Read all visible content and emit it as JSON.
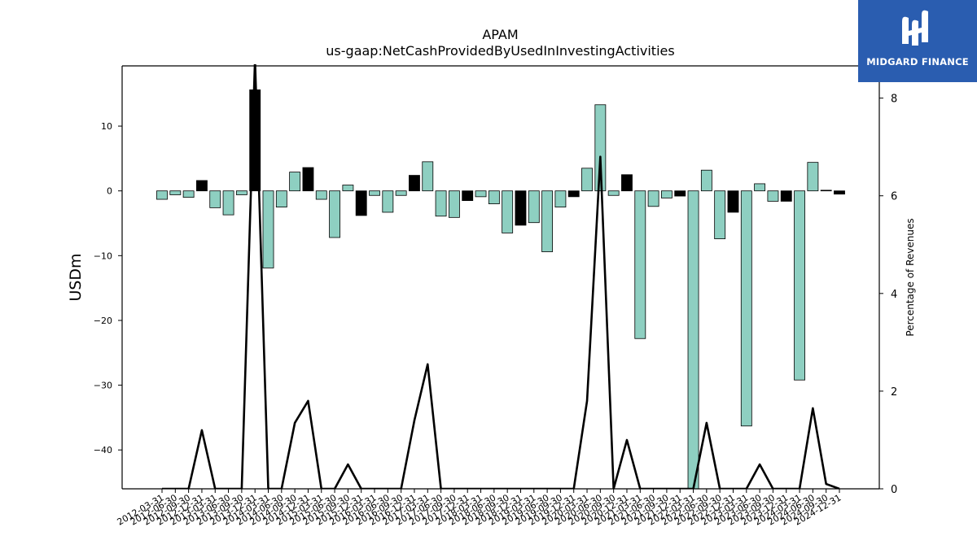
{
  "chart_data": {
    "type": "bar",
    "title": "APAM",
    "subtitle": "us-gaap:NetCashProvidedByUsedInInvestingActivities",
    "ylabel": "USDm",
    "y2label": "Percentage of Revenues",
    "ylim": [
      -46,
      19.3
    ],
    "y2lim": [
      0,
      8.66
    ],
    "yticks": [
      10,
      0,
      -10,
      -20,
      -30,
      -40
    ],
    "y2ticks": [
      0,
      2,
      4,
      6,
      8
    ],
    "categories": [
      "2012-03-31",
      "2012-06-30",
      "2012-09-30",
      "2012-12-31",
      "2013-03-31",
      "2013-06-30",
      "2013-09-30",
      "2013-12-31",
      "2014-03-31",
      "2014-06-30",
      "2014-09-30",
      "2014-12-31",
      "2015-03-31",
      "2015-06-30",
      "2015-09-30",
      "2015-12-31",
      "2016-03-31",
      "2016-06-30",
      "2016-09-30",
      "2016-12-31",
      "2017-03-31",
      "2017-06-30",
      "2017-09-30",
      "2017-12-31",
      "2018-03-31",
      "2018-06-30",
      "2018-09-30",
      "2018-12-31",
      "2019-03-31",
      "2019-06-30",
      "2019-09-30",
      "2019-12-31",
      "2020-03-31",
      "2020-06-30",
      "2020-09-30",
      "2020-12-31",
      "2021-03-31",
      "2021-06-30",
      "2021-09-30",
      "2021-12-31",
      "2022-03-31",
      "2022-06-30",
      "2022-09-30",
      "2022-12-31",
      "2023-03-31",
      "2023-06-30",
      "2023-09-30",
      "2023-12-31",
      "2024-03-31",
      "2024-06-30",
      "2024-09-30",
      "2024-12-31"
    ],
    "tick_labels_shown": [
      "2012-03-31",
      "2012-06-30",
      "2012-09-30",
      "2012-12-31",
      "2013-03-31",
      "2013-06-30",
      "2013-09-30",
      "2013-12-31",
      "2014-03-31",
      "2014-06-30",
      "2014-09-30",
      "2014-12-31",
      "2015-03-31",
      "2015-06-30",
      "2015-09-30",
      "2015-12-31",
      "2016-03-31",
      "2016-06-30",
      "2016-09-30",
      "2016-12-31",
      "2017-03-31",
      "2017-06-30",
      "2017-09-30",
      "2017-12-31",
      "2018-03-31",
      "2018-06-30",
      "2018-09-30",
      "2018-12-31",
      "2019-03-31",
      "2019-06-30",
      "2019-09-30",
      "2019-12-31",
      "2020-03-31",
      "2020-06-30",
      "2020-09-30",
      "2020-12-31",
      "2021-03-31",
      "2021-06-30",
      "2021-09-30",
      "2021-12-31",
      "2022-03-31",
      "2022-06-30",
      "2022-09-30",
      "2022-12-31",
      "2023-03-31",
      "2023-06-30",
      "2023-09-30",
      "2023-12-31",
      "2024-03-31",
      "2024-06-30",
      "2024-09-30",
      "2024-12-31"
    ],
    "values": [
      -1.3,
      -0.6,
      -1.0,
      1.6,
      -2.6,
      -3.7,
      -0.6,
      15.6,
      -11.9,
      -2.5,
      2.9,
      3.6,
      -1.3,
      -7.2,
      0.9,
      -3.8,
      -0.7,
      -3.3,
      -0.7,
      2.4,
      4.5,
      -3.9,
      -4.1,
      -1.5,
      -0.9,
      -2.0,
      -6.5,
      -5.3,
      -4.9,
      -9.4,
      -2.5,
      -0.9,
      3.5,
      13.3,
      -0.7,
      2.5,
      -22.8,
      -2.4,
      -1.1,
      -0.8,
      -46.0,
      3.2,
      -7.4,
      -3.3,
      -36.3,
      1.1,
      -1.6,
      -1.6,
      -29.2,
      4.4,
      0.1,
      -0.5
    ],
    "bar_colors": [
      "#8ecfc1",
      "#8ecfc1",
      "#8ecfc1",
      "#000000",
      "#8ecfc1",
      "#8ecfc1",
      "#8ecfc1",
      "#000000",
      "#8ecfc1",
      "#8ecfc1",
      "#8ecfc1",
      "#000000",
      "#8ecfc1",
      "#8ecfc1",
      "#8ecfc1",
      "#000000",
      "#8ecfc1",
      "#8ecfc1",
      "#8ecfc1",
      "#000000",
      "#8ecfc1",
      "#8ecfc1",
      "#8ecfc1",
      "#000000",
      "#8ecfc1",
      "#8ecfc1",
      "#8ecfc1",
      "#000000",
      "#8ecfc1",
      "#8ecfc1",
      "#8ecfc1",
      "#000000",
      "#8ecfc1",
      "#8ecfc1",
      "#8ecfc1",
      "#000000",
      "#8ecfc1",
      "#8ecfc1",
      "#8ecfc1",
      "#000000",
      "#8ecfc1",
      "#8ecfc1",
      "#8ecfc1",
      "#000000",
      "#8ecfc1",
      "#8ecfc1",
      "#8ecfc1",
      "#000000",
      "#8ecfc1",
      "#8ecfc1",
      "#8ecfc1",
      "#000000"
    ],
    "pct_of_revenues": [
      0,
      0,
      0,
      1.2,
      0,
      0,
      0,
      8.8,
      0,
      0,
      1.35,
      1.8,
      0,
      0,
      0.5,
      0,
      0,
      0,
      0,
      1.4,
      2.55,
      0,
      0,
      0,
      0,
      0,
      0,
      0,
      0,
      0,
      0,
      0,
      1.8,
      6.8,
      0,
      1.0,
      0,
      0,
      0,
      0,
      0,
      1.35,
      0,
      0,
      0,
      0.5,
      0,
      0,
      0,
      1.65,
      0.1,
      0
    ],
    "grid": false,
    "legend": "none",
    "colors": {
      "positive_bar": "#8ecfc1",
      "negative_bar": "#8ecfc1",
      "annual_bar": "#000000",
      "line": "#000000"
    }
  },
  "logo": {
    "text": "MIDGARD FINANCE",
    "background": "#2a5db0"
  }
}
